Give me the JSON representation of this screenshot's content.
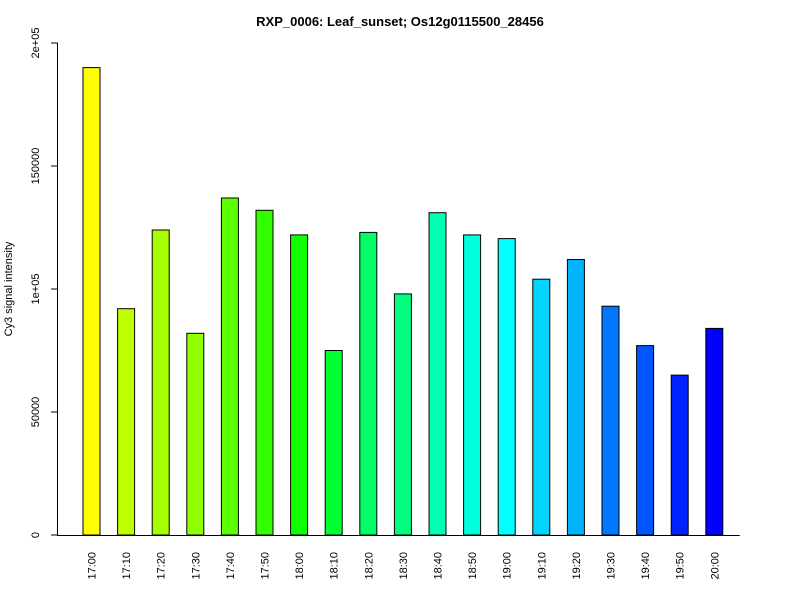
{
  "chart_data": {
    "type": "bar",
    "title": "RXP_0006: Leaf_sunset; Os12g0115500_28456",
    "xlabel": "",
    "ylabel": "Cy3 signal intensity",
    "ylim": [
      0,
      200000
    ],
    "yticks": [
      {
        "value": 0,
        "label": "0"
      },
      {
        "value": 50000,
        "label": "50000"
      },
      {
        "value": 100000,
        "label": "1e+05"
      },
      {
        "value": 150000,
        "label": "150000"
      },
      {
        "value": 200000,
        "label": "2e+05"
      }
    ],
    "grid": false,
    "legend": "none",
    "categories": [
      "17:00",
      "17:10",
      "17:20",
      "17:30",
      "17:40",
      "17:50",
      "18:00",
      "18:10",
      "18:20",
      "18:30",
      "18:40",
      "18:50",
      "19:00",
      "19:10",
      "19:20",
      "19:30",
      "19:40",
      "19:50",
      "20:00"
    ],
    "values": [
      190000,
      92000,
      124000,
      82000,
      137000,
      132000,
      122000,
      75000,
      123000,
      98000,
      131000,
      122000,
      120500,
      104000,
      112000,
      93000,
      77000,
      65000,
      84000
    ],
    "colors": [
      "#FFFF00",
      "#BBFF00",
      "#A6FF00",
      "#90FF00",
      "#5CFF00",
      "#33FF00",
      "#11FF00",
      "#00FF33",
      "#00FF66",
      "#00FF80",
      "#00FFB3",
      "#00FFDD",
      "#00FFFF",
      "#00D5FF",
      "#00B3FF",
      "#0077FF",
      "#0055FF",
      "#0022FF",
      "#0000FF"
    ]
  }
}
